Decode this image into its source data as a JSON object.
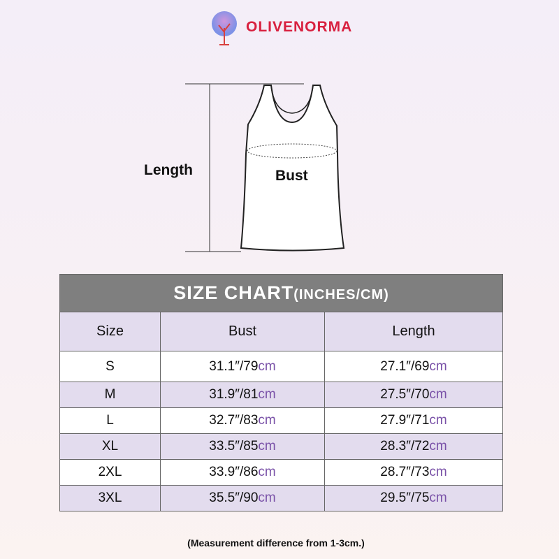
{
  "brand": {
    "name": "OLIVENORMA",
    "color": "#d8203f"
  },
  "diagram": {
    "length_label": "Length",
    "bust_label": "Bust"
  },
  "table": {
    "title": "SIZE CHART",
    "title_unit": "(INCHES/CM)",
    "headers": [
      "Size",
      "Bust",
      "Length"
    ],
    "rows": [
      {
        "size": "S",
        "bust_in": "31.1″/79",
        "length_in": "27.1″/69"
      },
      {
        "size": "M",
        "bust_in": "31.9″/81",
        "length_in": "27.5″/70"
      },
      {
        "size": "L",
        "bust_in": "32.7″/83",
        "length_in": "27.9″/71"
      },
      {
        "size": "XL",
        "bust_in": "33.5″/85",
        "length_in": "28.3″/72"
      },
      {
        "size": "2XL",
        "bust_in": "33.9″/86",
        "length_in": "28.7″/73"
      },
      {
        "size": "3XL",
        "bust_in": "35.5″/90",
        "length_in": "29.5″/75"
      }
    ],
    "unit_cm": "cm",
    "colors": {
      "header": "#7f7f7f",
      "alt_row": "#e3dcee",
      "cm": "#7a52a8"
    }
  },
  "note": "(Measurement difference from 1-3cm.)"
}
